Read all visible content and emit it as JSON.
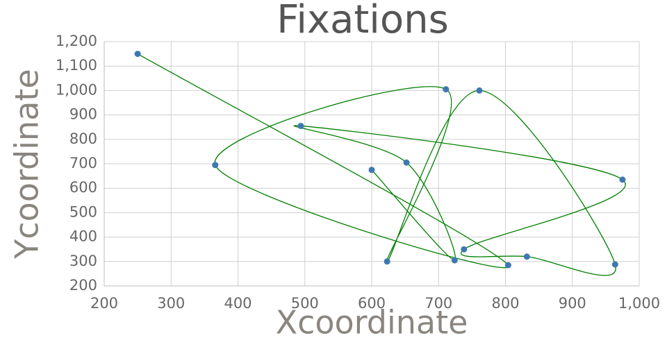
{
  "chart_data": {
    "type": "scatter",
    "title": "Fixations",
    "x_label": "Xcoordinate",
    "y_label": "Ycoordinate",
    "x": [
      250,
      804,
      366,
      711,
      623,
      761,
      964,
      832,
      738,
      975,
      494,
      652,
      724,
      600
    ],
    "values": [
      1150,
      285,
      695,
      1005,
      300,
      1000,
      288,
      320,
      350,
      635,
      855,
      705,
      305,
      675
    ],
    "marker_color": "#3e78b2",
    "line_color": "#008000",
    "smooth": true,
    "grid": true,
    "xlim": [
      200,
      1000
    ],
    "xticks": [
      200,
      300,
      400,
      500,
      600,
      700,
      800,
      900,
      {
        "value": 1000,
        "label": "1,000"
      }
    ],
    "ylim": [
      200,
      1200
    ],
    "yticks": [
      200,
      300,
      400,
      500,
      600,
      700,
      800,
      900,
      {
        "value": 1000,
        "label": "1,000"
      },
      {
        "value": 1100,
        "label": "1,100"
      },
      {
        "value": 1200,
        "label": "1,200"
      }
    ]
  }
}
